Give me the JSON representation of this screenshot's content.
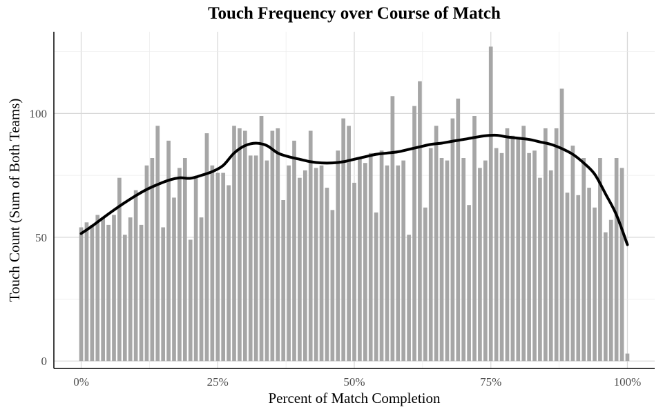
{
  "chart_data": {
    "type": "bar",
    "title": "Touch Frequency over Course of Match",
    "xlabel": "Percent of Match Completion",
    "ylabel": "Touch Count (Sum of Both Teams)",
    "x_tick_labels": [
      "0%",
      "25%",
      "50%",
      "75%",
      "100%"
    ],
    "y_ticks": [
      0,
      50,
      100
    ],
    "xlim": [
      -0.05,
      1.05
    ],
    "ylim": [
      -3,
      133
    ],
    "grid": true,
    "colors": {
      "bar": "#a6a6a6",
      "smooth_line": "#000000",
      "grid": "#d9d9d9"
    },
    "series": [
      {
        "type": "bar",
        "x": [
          0.0,
          0.01,
          0.02,
          0.03,
          0.04,
          0.05,
          0.06,
          0.07,
          0.08,
          0.09,
          0.1,
          0.11,
          0.12,
          0.13,
          0.14,
          0.15,
          0.16,
          0.17,
          0.18,
          0.19,
          0.2,
          0.21,
          0.22,
          0.23,
          0.24,
          0.25,
          0.26,
          0.27,
          0.28,
          0.29,
          0.3,
          0.31,
          0.32,
          0.33,
          0.34,
          0.35,
          0.36,
          0.37,
          0.38,
          0.39,
          0.4,
          0.41,
          0.42,
          0.43,
          0.44,
          0.45,
          0.46,
          0.47,
          0.48,
          0.49,
          0.5,
          0.51,
          0.52,
          0.53,
          0.54,
          0.55,
          0.56,
          0.57,
          0.58,
          0.59,
          0.6,
          0.61,
          0.62,
          0.63,
          0.64,
          0.65,
          0.66,
          0.67,
          0.68,
          0.69,
          0.7,
          0.71,
          0.72,
          0.73,
          0.74,
          0.75,
          0.76,
          0.77,
          0.78,
          0.79,
          0.8,
          0.81,
          0.82,
          0.83,
          0.84,
          0.85,
          0.86,
          0.87,
          0.88,
          0.89,
          0.9,
          0.91,
          0.92,
          0.93,
          0.94,
          0.95,
          0.96,
          0.97,
          0.98,
          0.99,
          1.0
        ],
        "values": [
          54,
          56,
          55,
          59,
          58,
          55,
          59,
          74,
          51,
          58,
          69,
          55,
          79,
          82,
          95,
          54,
          89,
          66,
          78,
          82,
          49,
          74,
          58,
          92,
          79,
          76,
          76,
          71,
          95,
          94,
          93,
          83,
          83,
          99,
          81,
          93,
          94,
          65,
          79,
          89,
          74,
          77,
          93,
          78,
          79,
          70,
          61,
          85,
          98,
          95,
          72,
          82,
          80,
          84,
          60,
          85,
          79,
          107,
          79,
          81,
          51,
          103,
          113,
          62,
          86,
          95,
          82,
          81,
          98,
          106,
          82,
          63,
          99,
          78,
          81,
          127,
          86,
          84,
          94,
          91,
          90,
          95,
          84,
          85,
          74,
          94,
          77,
          94,
          110,
          68,
          87,
          67,
          82,
          70,
          62,
          82,
          52,
          57,
          82,
          78,
          3
        ]
      },
      {
        "type": "line",
        "name": "smooth",
        "x": [
          0.0,
          0.02,
          0.04,
          0.06,
          0.08,
          0.1,
          0.12,
          0.14,
          0.16,
          0.18,
          0.2,
          0.22,
          0.24,
          0.26,
          0.28,
          0.3,
          0.32,
          0.34,
          0.36,
          0.38,
          0.4,
          0.42,
          0.44,
          0.46,
          0.48,
          0.5,
          0.52,
          0.54,
          0.56,
          0.58,
          0.6,
          0.62,
          0.64,
          0.66,
          0.68,
          0.7,
          0.72,
          0.74,
          0.76,
          0.78,
          0.8,
          0.82,
          0.84,
          0.86,
          0.88,
          0.9,
          0.92,
          0.94,
          0.96,
          0.98,
          1.0
        ],
        "values": [
          51.5,
          54.5,
          57.8,
          61.0,
          64.0,
          66.8,
          69.3,
          71.3,
          73.0,
          74.0,
          73.8,
          75.0,
          76.5,
          79.0,
          84.0,
          87.0,
          88.0,
          87.0,
          84.0,
          82.5,
          81.5,
          80.5,
          80.0,
          80.0,
          80.5,
          81.5,
          82.5,
          83.5,
          84.0,
          84.5,
          85.5,
          86.5,
          87.5,
          88.0,
          88.8,
          89.5,
          90.3,
          91.0,
          91.2,
          90.5,
          90.0,
          89.5,
          88.5,
          87.5,
          85.8,
          83.5,
          80.0,
          75.5,
          67.5,
          59.0,
          47.0
        ]
      }
    ]
  }
}
